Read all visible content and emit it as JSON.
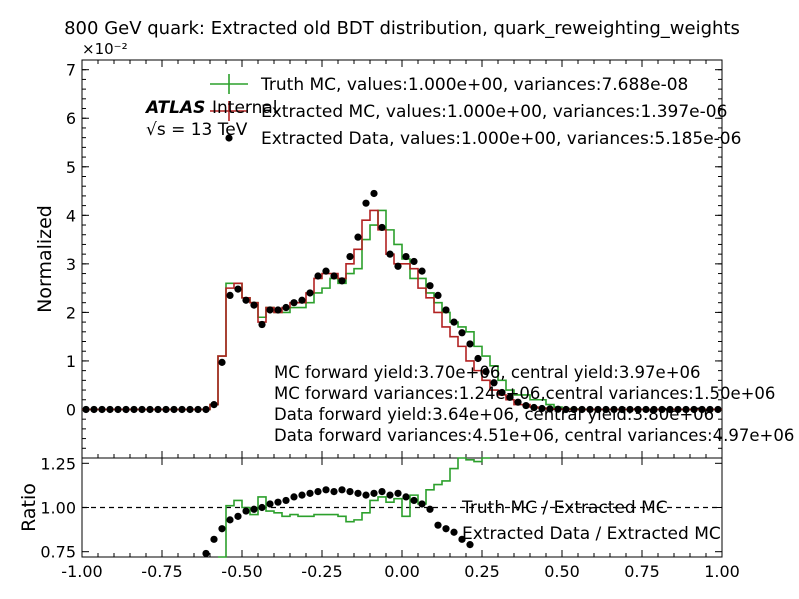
{
  "title": "800 GeV quark: Extracted old BDT distribution, quark_reweighting_weights",
  "colors": {
    "truth_mc": "#2ca02c",
    "extracted_mc": "#b22222",
    "extracted_data": "#000000"
  },
  "chart_data": [
    {
      "type": "line",
      "panel": "main",
      "ylabel": "Normalized",
      "y_scale_label": "×10⁻²",
      "ylim": [
        -0.01,
        0.072
      ],
      "xlim": [
        -1.0,
        1.0
      ],
      "yticks": [
        "0",
        "1",
        "2",
        "3",
        "4",
        "5",
        "6",
        "7"
      ],
      "ytick_values": [
        0,
        0.01,
        0.02,
        0.03,
        0.04,
        0.05,
        0.06,
        0.07
      ],
      "bin_edges": [
        -1.0,
        -0.975,
        -0.95,
        -0.925,
        -0.9,
        -0.875,
        -0.85,
        -0.825,
        -0.8,
        -0.775,
        -0.75,
        -0.725,
        -0.7,
        -0.675,
        -0.65,
        -0.625,
        -0.6,
        -0.575,
        -0.55,
        -0.525,
        -0.5,
        -0.475,
        -0.45,
        -0.425,
        -0.4,
        -0.375,
        -0.35,
        -0.325,
        -0.3,
        -0.275,
        -0.25,
        -0.225,
        -0.2,
        -0.175,
        -0.15,
        -0.125,
        -0.1,
        -0.075,
        -0.05,
        -0.025,
        0.0,
        0.025,
        0.05,
        0.075,
        0.1,
        0.125,
        0.15,
        0.175,
        0.2,
        0.225,
        0.25,
        0.275,
        0.3,
        0.325,
        0.35,
        0.375,
        0.4,
        0.425,
        0.45,
        0.475,
        0.5,
        0.525,
        0.55,
        0.575,
        0.6,
        0.625,
        0.65,
        0.675,
        0.7,
        0.725,
        0.75,
        0.775,
        0.8,
        0.825,
        0.85,
        0.875,
        0.9,
        0.925,
        0.95,
        0.975,
        1.0
      ],
      "series": [
        {
          "name": "Truth MC, values:1.000e+00, variances:7.688e-08",
          "style": "step",
          "color": "#2ca02c",
          "values": [
            0,
            0,
            0,
            0,
            0,
            0,
            0,
            0,
            0,
            0,
            0,
            0,
            0,
            0,
            0,
            0,
            0.001,
            0.011,
            0.026,
            0.026,
            0.023,
            0.022,
            0.019,
            0.021,
            0.02,
            0.02,
            0.021,
            0.021,
            0.022,
            0.024,
            0.025,
            0.027,
            0.026,
            0.028,
            0.029,
            0.035,
            0.038,
            0.041,
            0.037,
            0.034,
            0.031,
            0.027,
            0.027,
            0.024,
            0.022,
            0.02,
            0.018,
            0.017,
            0.016,
            0.013,
            0.011,
            0.009,
            0.006,
            0.004,
            0.003,
            0.003,
            0.002,
            0.002,
            0.001,
            0.0005,
            0.0002,
            0.0001,
            5e-05,
            0,
            0,
            0,
            0,
            0,
            0,
            0,
            0,
            0,
            0,
            0,
            0,
            0,
            0,
            0,
            0,
            0
          ]
        },
        {
          "name": "Extracted MC, values:1.000e+00, variances:1.397e-06",
          "style": "step",
          "color": "#b22222",
          "values": [
            0,
            0,
            0,
            0,
            0,
            0,
            0,
            0,
            0,
            0,
            0,
            0,
            0,
            0,
            0,
            0,
            0.001,
            0.011,
            0.025,
            0.026,
            0.023,
            0.022,
            0.018,
            0.021,
            0.02,
            0.021,
            0.022,
            0.022,
            0.024,
            0.027,
            0.028,
            0.028,
            0.027,
            0.03,
            0.033,
            0.039,
            0.041,
            0.037,
            0.032,
            0.03,
            0.03,
            0.029,
            0.025,
            0.023,
            0.02,
            0.017,
            0.015,
            0.013,
            0.01,
            0.008,
            0.006,
            0.004,
            0.003,
            0.002,
            0.001,
            0.001,
            0.0005,
            0.0003,
            0.0001,
            5e-05,
            3e-05,
            0,
            0,
            0,
            0,
            0,
            0,
            0,
            0,
            0,
            0,
            0,
            0,
            0,
            0,
            0,
            0,
            0,
            0,
            0
          ]
        },
        {
          "name": "Extracted Data, values:1.000e+00, variances:5.185e-06",
          "style": "errorbar",
          "color": "#000000",
          "values": [
            0,
            0,
            0,
            0,
            0,
            0,
            0,
            0,
            0,
            0,
            0,
            0,
            0,
            0,
            0,
            0,
            0.001,
            0.0097,
            0.0235,
            0.0248,
            0.0225,
            0.0215,
            0.0175,
            0.0205,
            0.0205,
            0.021,
            0.022,
            0.0225,
            0.024,
            0.0275,
            0.0285,
            0.0275,
            0.0265,
            0.0315,
            0.0355,
            0.0425,
            0.0445,
            0.0375,
            0.032,
            0.0295,
            0.0315,
            0.0305,
            0.0285,
            0.0255,
            0.0235,
            0.0205,
            0.018,
            0.0158,
            0.0135,
            0.0105,
            0.0078,
            0.0055,
            0.0035,
            0.0025,
            0.0015,
            0.0008,
            0.0004,
            0.0002,
            0.0001,
            5e-05,
            0,
            0,
            0,
            0,
            0,
            0,
            0,
            0,
            0,
            0,
            0,
            0,
            0,
            0,
            0,
            0,
            0,
            0,
            0,
            0
          ]
        }
      ]
    },
    {
      "type": "line",
      "panel": "ratio",
      "ylabel": "Ratio",
      "ylim": [
        0.72,
        1.28
      ],
      "xlim": [
        -1.0,
        1.0
      ],
      "xticks": [
        "-1.00",
        "-0.75",
        "-0.50",
        "-0.25",
        "0.00",
        "0.25",
        "0.50",
        "0.75",
        "1.00"
      ],
      "xtick_values": [
        -1.0,
        -0.75,
        -0.5,
        -0.25,
        0.0,
        0.25,
        0.5,
        0.75,
        1.0
      ],
      "yticks": [
        "0.75",
        "1.00",
        "1.25"
      ],
      "ytick_values": [
        0.75,
        1.0,
        1.25
      ],
      "reference_line": 1.0,
      "series": [
        {
          "name": "Truth MC / Extracted MC",
          "style": "step",
          "color": "#2ca02c",
          "x": [
            -0.5625,
            -0.5375,
            -0.5125,
            -0.4875,
            -0.4625,
            -0.4375,
            -0.4125,
            -0.3875,
            -0.3625,
            -0.3375,
            -0.3125,
            -0.2875,
            -0.2625,
            -0.2375,
            -0.2125,
            -0.1875,
            -0.1625,
            -0.1375,
            -0.1125,
            -0.0875,
            -0.0625,
            -0.0375,
            -0.0125,
            0.0125,
            0.0375,
            0.0625,
            0.0875,
            0.1125,
            0.1375,
            0.1625,
            0.1875,
            0.2125,
            0.2375,
            0.2625
          ],
          "values": [
            0.72,
            1.01,
            1.04,
            1.0,
            0.96,
            1.06,
            0.98,
            0.97,
            0.95,
            0.96,
            0.95,
            0.95,
            0.96,
            0.96,
            0.96,
            0.95,
            0.92,
            0.93,
            0.97,
            1.04,
            1.06,
            1.03,
            1.05,
            0.95,
            1.07,
            1.02,
            1.1,
            1.13,
            1.15,
            1.22,
            1.28,
            1.27,
            1.26,
            1.28
          ]
        },
        {
          "name": "Extracted Data / Extracted MC",
          "style": "errorbar",
          "color": "#000000",
          "x": [
            -0.6125,
            -0.5875,
            -0.5625,
            -0.5375,
            -0.5125,
            -0.4875,
            -0.4625,
            -0.4375,
            -0.4125,
            -0.3875,
            -0.3625,
            -0.3375,
            -0.3125,
            -0.2875,
            -0.2625,
            -0.2375,
            -0.2125,
            -0.1875,
            -0.1625,
            -0.1375,
            -0.1125,
            -0.0875,
            -0.0625,
            -0.0375,
            -0.0125,
            0.0125,
            0.0375,
            0.0625,
            0.0875,
            0.1125,
            0.1375,
            0.1625,
            0.1875,
            0.2125
          ],
          "values": [
            0.74,
            0.82,
            0.88,
            0.93,
            0.95,
            0.98,
            0.99,
            1.0,
            1.02,
            1.03,
            1.04,
            1.06,
            1.07,
            1.08,
            1.09,
            1.1,
            1.09,
            1.1,
            1.09,
            1.08,
            1.07,
            1.08,
            1.09,
            1.07,
            1.08,
            1.06,
            1.04,
            1.02,
            0.99,
            0.9,
            0.88,
            0.86,
            0.82,
            0.79
          ]
        }
      ]
    }
  ],
  "atlas": {
    "label": "ATLAS",
    "status": "Internal",
    "energy": "√s = 13 TeV"
  },
  "yields": [
    "MC forward yield:3.70e+06, central yield:3.97e+06",
    "MC forward variances:1.24e+06,central variances:1.50e+06",
    "Data forward yield:3.64e+06, central yield:3.80e+06",
    "Data forward variances:4.51e+06, central variances:4.97e+06"
  ]
}
